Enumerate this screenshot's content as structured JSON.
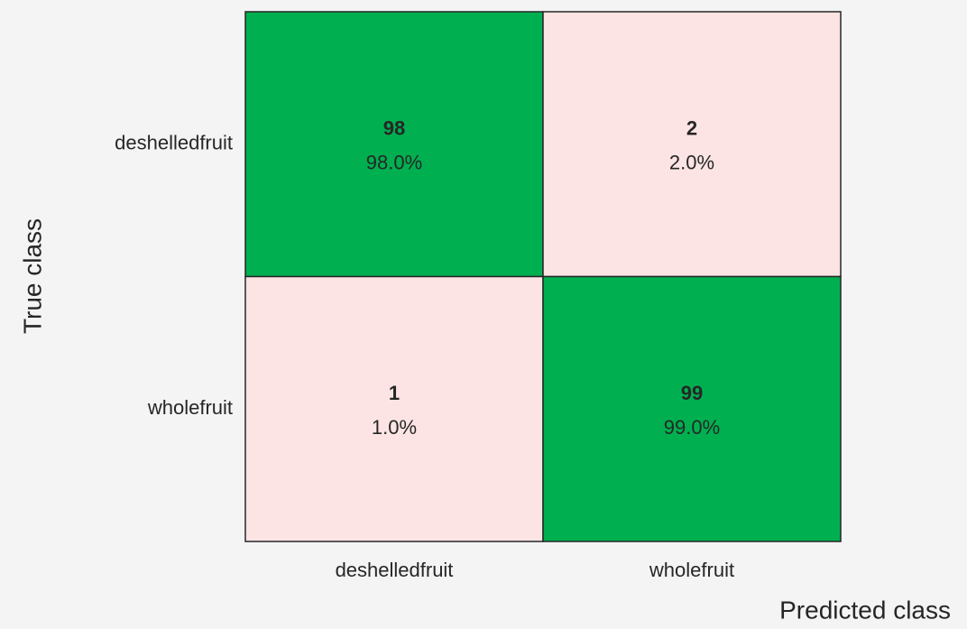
{
  "chart_data": {
    "type": "confusion_matrix",
    "x_label": "Predicted class",
    "y_label": "True class",
    "row_labels": [
      "deshelledfruit",
      "wholefruit"
    ],
    "column_labels": [
      "deshelledfruit",
      "wholefruit"
    ],
    "values": [
      [
        98,
        2
      ],
      [
        1,
        99
      ]
    ],
    "percent_values": [
      [
        98.0,
        2.0
      ],
      [
        1.0,
        99.0
      ]
    ],
    "percent_labels": [
      [
        "98.0%",
        "2.0%"
      ],
      [
        "1.0%",
        "99.0%"
      ]
    ],
    "diagonal_color": "#00b050",
    "off_diagonal_color": "#fde4e4"
  }
}
